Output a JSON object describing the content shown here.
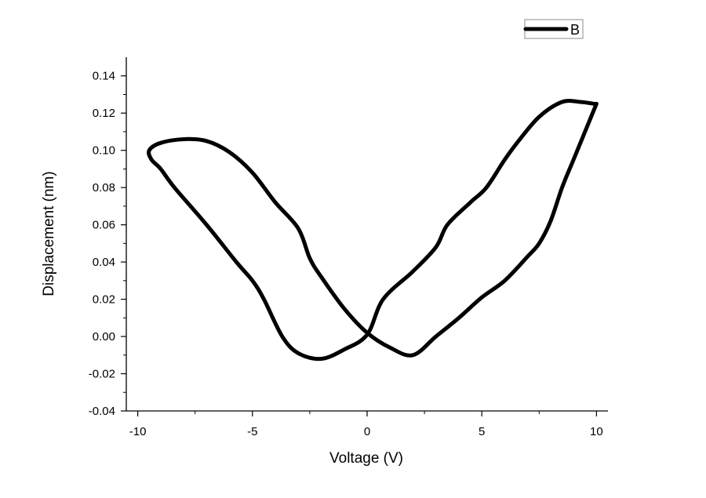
{
  "chart_data": {
    "type": "line",
    "title": "",
    "xlabel": "Voltage (V)",
    "ylabel": "Displacement (nm)",
    "xlim": [
      -10.5,
      10.5
    ],
    "ylim": [
      -0.04,
      0.15
    ],
    "xticks": [
      -10,
      -5,
      0,
      5,
      10
    ],
    "xtick_labels": [
      "-10",
      "-5",
      "0",
      "5",
      "10"
    ],
    "yticks": [
      -0.04,
      -0.02,
      0.0,
      0.02,
      0.04,
      0.06,
      0.08,
      0.1,
      0.12,
      0.14
    ],
    "ytick_labels": [
      "-0.04",
      "-0.02",
      "0.00",
      "0.02",
      "0.04",
      "0.06",
      "0.08",
      "0.10",
      "0.12",
      "0.14"
    ],
    "grid": false,
    "legend": {
      "position": "top-right",
      "entries": [
        "B"
      ]
    },
    "series": [
      {
        "name": "B",
        "color": "#000000",
        "x": [
          10,
          9.5,
          9,
          8.5,
          8,
          7.5,
          7,
          6,
          5,
          4,
          3,
          2,
          1,
          0,
          -1,
          -2,
          -2.5,
          -3,
          -4,
          -5,
          -6,
          -7,
          -8,
          -9,
          -9.5,
          -9.4,
          -9,
          -8.4,
          -7,
          -5.7,
          -5,
          -4.5,
          -3.7,
          -3,
          -2,
          -1,
          0,
          0.7,
          2,
          3,
          3.5,
          4.5,
          5.2,
          6,
          6.6,
          7.5,
          8.5,
          9.3,
          9.9,
          10
        ],
        "y": [
          0.125,
          0.11,
          0.095,
          0.08,
          0.062,
          0.05,
          0.043,
          0.03,
          0.021,
          0.01,
          0.0,
          -0.01,
          -0.006,
          0.002,
          0.015,
          0.032,
          0.042,
          0.058,
          0.072,
          0.088,
          0.099,
          0.105,
          0.106,
          0.104,
          0.1,
          0.095,
          0.09,
          0.08,
          0.06,
          0.04,
          0.03,
          0.02,
          0.0,
          -0.009,
          -0.012,
          -0.007,
          0.001,
          0.02,
          0.035,
          0.048,
          0.06,
          0.072,
          0.08,
          0.095,
          0.105,
          0.118,
          0.126,
          0.126,
          0.125,
          0.125
        ]
      }
    ]
  }
}
